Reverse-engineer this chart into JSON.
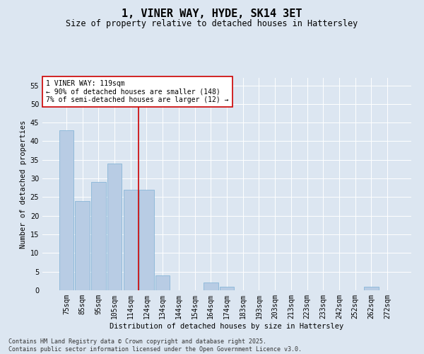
{
  "title": "1, VINER WAY, HYDE, SK14 3ET",
  "subtitle": "Size of property relative to detached houses in Hattersley",
  "xlabel": "Distribution of detached houses by size in Hattersley",
  "ylabel": "Number of detached properties",
  "categories": [
    "75sqm",
    "85sqm",
    "95sqm",
    "105sqm",
    "114sqm",
    "124sqm",
    "134sqm",
    "144sqm",
    "154sqm",
    "164sqm",
    "174sqm",
    "183sqm",
    "193sqm",
    "203sqm",
    "213sqm",
    "223sqm",
    "233sqm",
    "242sqm",
    "252sqm",
    "262sqm",
    "272sqm"
  ],
  "values": [
    43,
    24,
    29,
    34,
    27,
    27,
    4,
    0,
    0,
    2,
    1,
    0,
    0,
    0,
    0,
    0,
    0,
    0,
    0,
    1,
    0
  ],
  "bar_color": "#b8cce4",
  "bar_edge_color": "#7bafd4",
  "vline_x": 4.5,
  "vline_color": "#cc0000",
  "annotation_text": "1 VINER WAY: 119sqm\n← 90% of detached houses are smaller (148)\n7% of semi-detached houses are larger (12) →",
  "annotation_box_color": "#ffffff",
  "annotation_box_edge": "#cc0000",
  "ylim": [
    0,
    57
  ],
  "yticks": [
    0,
    5,
    10,
    15,
    20,
    25,
    30,
    35,
    40,
    45,
    50,
    55
  ],
  "bg_color": "#dce6f1",
  "plot_bg_color": "#dce6f1",
  "footer_line1": "Contains HM Land Registry data © Crown copyright and database right 2025.",
  "footer_line2": "Contains public sector information licensed under the Open Government Licence v3.0.",
  "title_fontsize": 11,
  "subtitle_fontsize": 8.5,
  "axis_label_fontsize": 7.5,
  "tick_fontsize": 7,
  "annotation_fontsize": 7,
  "footer_fontsize": 6
}
